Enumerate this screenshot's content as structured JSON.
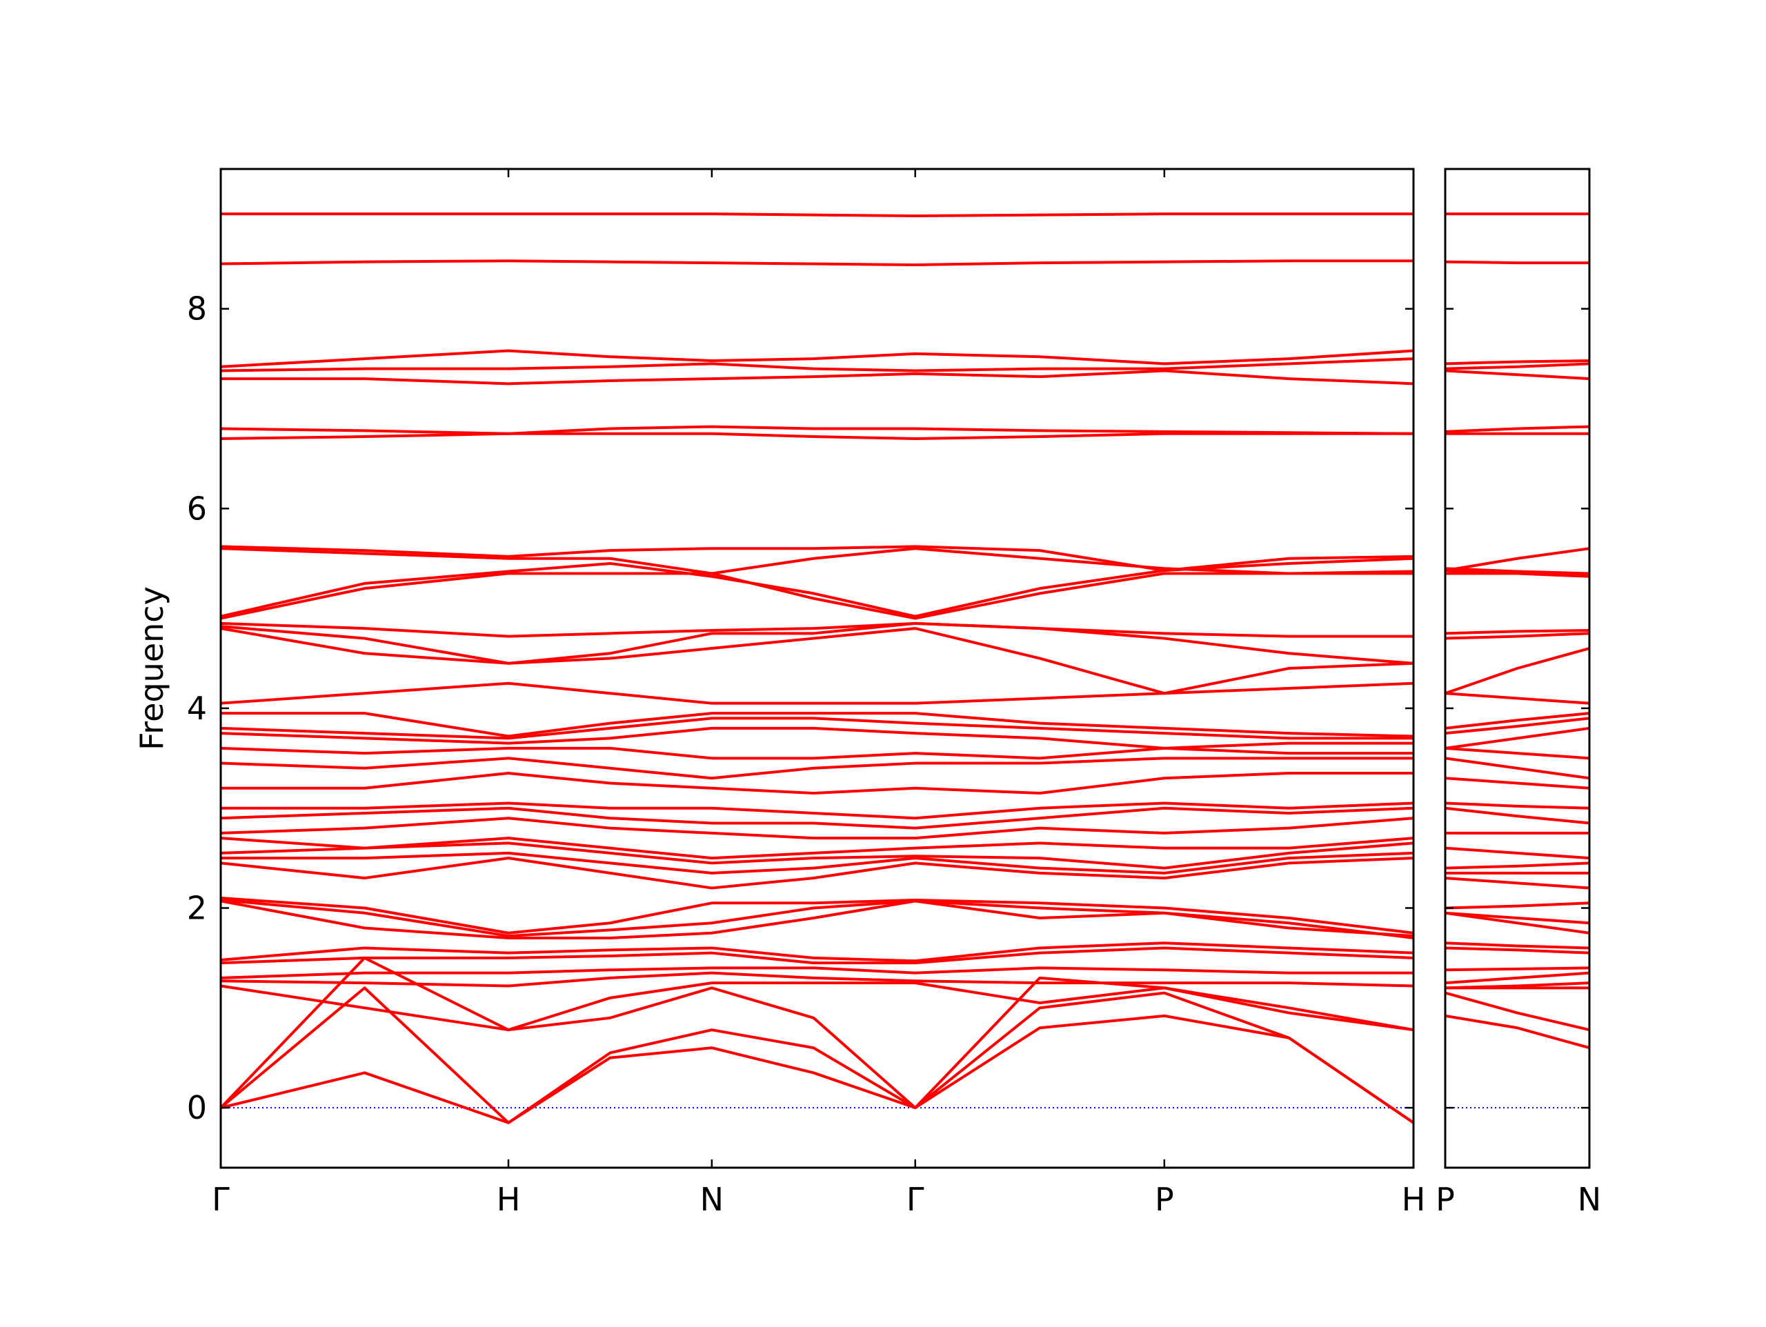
{
  "chart_data": [
    {
      "type": "line",
      "ylabel": "Frequency",
      "color": "#ff0000",
      "line_width": 4,
      "hline": 0,
      "hline_color": "#0000ff",
      "x": [
        0,
        0.5,
        1,
        1.3536,
        1.7071,
        2.0607,
        2.4142,
        2.8472,
        3.2802,
        3.7133,
        4.1463
      ],
      "xlim": [
        0,
        4.1463
      ],
      "xticks": [
        {
          "value": 0,
          "label": "Γ"
        },
        {
          "value": 1,
          "label": "H"
        },
        {
          "value": 1.7071,
          "label": "N"
        },
        {
          "value": 2.4142,
          "label": "Γ"
        },
        {
          "value": 3.2802,
          "label": "P"
        },
        {
          "value": 4.1463,
          "label": "H"
        }
      ],
      "ylim": [
        -0.6,
        9.4
      ],
      "yticks": [
        0,
        2,
        4,
        6,
        8
      ],
      "series": [
        {
          "values": [
            0,
            0.35,
            -0.15,
            0.5,
            0.6,
            0.35,
            0,
            0.8,
            0.92,
            0.7,
            -0.15
          ]
        },
        {
          "values": [
            0,
            1.2,
            -0.15,
            0.55,
            0.78,
            0.6,
            0,
            1.0,
            1.15,
            0.7,
            -0.15
          ]
        },
        {
          "values": [
            0,
            1.5,
            0.78,
            0.9,
            1.2,
            0.9,
            0,
            1.3,
            1.2,
            1.0,
            0.78
          ]
        },
        {
          "values": [
            1.22,
            1.0,
            0.78,
            1.1,
            1.25,
            1.25,
            1.25,
            1.05,
            1.2,
            0.95,
            0.78
          ]
        },
        {
          "values": [
            1.27,
            1.25,
            1.22,
            1.3,
            1.35,
            1.3,
            1.27,
            1.25,
            1.25,
            1.25,
            1.22
          ]
        },
        {
          "values": [
            1.3,
            1.35,
            1.35,
            1.38,
            1.4,
            1.4,
            1.35,
            1.4,
            1.38,
            1.35,
            1.35
          ]
        },
        {
          "values": [
            1.45,
            1.5,
            1.5,
            1.52,
            1.55,
            1.45,
            1.45,
            1.55,
            1.6,
            1.55,
            1.5
          ]
        },
        {
          "values": [
            1.48,
            1.6,
            1.55,
            1.58,
            1.6,
            1.5,
            1.47,
            1.6,
            1.65,
            1.6,
            1.55
          ]
        },
        {
          "values": [
            2.07,
            1.8,
            1.7,
            1.7,
            1.75,
            1.9,
            2.07,
            1.9,
            1.95,
            1.85,
            1.7
          ]
        },
        {
          "values": [
            2.08,
            1.95,
            1.72,
            1.78,
            1.85,
            2.0,
            2.07,
            2.0,
            1.95,
            1.8,
            1.72
          ]
        },
        {
          "values": [
            2.1,
            2.0,
            1.75,
            1.85,
            2.05,
            2.05,
            2.08,
            2.05,
            2.0,
            1.9,
            1.75
          ]
        },
        {
          "values": [
            2.45,
            2.3,
            2.5,
            2.35,
            2.2,
            2.3,
            2.45,
            2.35,
            2.3,
            2.45,
            2.5
          ]
        },
        {
          "values": [
            2.5,
            2.5,
            2.55,
            2.45,
            2.35,
            2.4,
            2.5,
            2.4,
            2.35,
            2.5,
            2.55
          ]
        },
        {
          "values": [
            2.55,
            2.6,
            2.65,
            2.55,
            2.45,
            2.5,
            2.52,
            2.5,
            2.4,
            2.55,
            2.65
          ]
        },
        {
          "values": [
            2.7,
            2.6,
            2.7,
            2.6,
            2.5,
            2.55,
            2.6,
            2.65,
            2.6,
            2.6,
            2.7
          ]
        },
        {
          "values": [
            2.75,
            2.8,
            2.9,
            2.8,
            2.75,
            2.7,
            2.7,
            2.8,
            2.75,
            2.8,
            2.9
          ]
        },
        {
          "values": [
            2.9,
            2.95,
            3.0,
            2.9,
            2.85,
            2.85,
            2.8,
            2.9,
            3.0,
            2.95,
            3.0
          ]
        },
        {
          "values": [
            3.0,
            3.0,
            3.05,
            3.0,
            3.0,
            2.95,
            2.9,
            3.0,
            3.05,
            3.0,
            3.05
          ]
        },
        {
          "values": [
            3.2,
            3.2,
            3.35,
            3.25,
            3.2,
            3.15,
            3.2,
            3.15,
            3.3,
            3.35,
            3.35
          ]
        },
        {
          "values": [
            3.45,
            3.4,
            3.5,
            3.4,
            3.3,
            3.4,
            3.45,
            3.45,
            3.5,
            3.5,
            3.5
          ]
        },
        {
          "values": [
            3.6,
            3.55,
            3.6,
            3.6,
            3.5,
            3.5,
            3.55,
            3.5,
            3.6,
            3.55,
            3.55
          ]
        },
        {
          "values": [
            3.75,
            3.7,
            3.65,
            3.7,
            3.8,
            3.8,
            3.75,
            3.7,
            3.6,
            3.65,
            3.65
          ]
        },
        {
          "values": [
            3.8,
            3.75,
            3.7,
            3.8,
            3.9,
            3.9,
            3.85,
            3.8,
            3.75,
            3.7,
            3.7
          ]
        },
        {
          "values": [
            3.95,
            3.95,
            3.72,
            3.85,
            3.95,
            3.95,
            3.95,
            3.85,
            3.8,
            3.75,
            3.72
          ]
        },
        {
          "values": [
            4.05,
            4.15,
            4.25,
            4.15,
            4.05,
            4.05,
            4.05,
            4.1,
            4.15,
            4.2,
            4.25
          ]
        },
        {
          "values": [
            4.8,
            4.55,
            4.45,
            4.5,
            4.6,
            4.7,
            4.8,
            4.5,
            4.15,
            4.4,
            4.45
          ]
        },
        {
          "values": [
            4.82,
            4.7,
            4.45,
            4.55,
            4.75,
            4.75,
            4.85,
            4.8,
            4.7,
            4.55,
            4.45
          ]
        },
        {
          "values": [
            4.85,
            4.8,
            4.72,
            4.75,
            4.78,
            4.8,
            4.85,
            4.8,
            4.75,
            4.72,
            4.72
          ]
        },
        {
          "values": [
            4.9,
            5.2,
            5.35,
            5.35,
            5.35,
            5.1,
            4.9,
            5.15,
            5.35,
            5.35,
            5.35
          ]
        },
        {
          "values": [
            4.92,
            5.25,
            5.37,
            5.45,
            5.32,
            5.15,
            4.92,
            5.2,
            5.38,
            5.45,
            5.5
          ]
        },
        {
          "values": [
            5.6,
            5.55,
            5.5,
            5.5,
            5.35,
            5.5,
            5.6,
            5.5,
            5.4,
            5.35,
            5.37
          ]
        },
        {
          "values": [
            5.62,
            5.58,
            5.52,
            5.58,
            5.6,
            5.6,
            5.62,
            5.58,
            5.38,
            5.5,
            5.52
          ]
        },
        {
          "values": [
            6.7,
            6.72,
            6.75,
            6.75,
            6.75,
            6.72,
            6.7,
            6.72,
            6.75,
            6.75,
            6.75
          ]
        },
        {
          "values": [
            6.8,
            6.78,
            6.75,
            6.8,
            6.82,
            6.8,
            6.8,
            6.78,
            6.77,
            6.76,
            6.75
          ]
        },
        {
          "values": [
            7.3,
            7.3,
            7.25,
            7.28,
            7.3,
            7.32,
            7.35,
            7.32,
            7.38,
            7.3,
            7.25
          ]
        },
        {
          "values": [
            7.38,
            7.4,
            7.4,
            7.42,
            7.45,
            7.4,
            7.38,
            7.4,
            7.4,
            7.45,
            7.5
          ]
        },
        {
          "values": [
            7.42,
            7.5,
            7.58,
            7.52,
            7.48,
            7.5,
            7.55,
            7.52,
            7.45,
            7.5,
            7.58
          ]
        },
        {
          "values": [
            8.45,
            8.47,
            8.48,
            8.47,
            8.46,
            8.45,
            8.44,
            8.46,
            8.47,
            8.48,
            8.48
          ]
        },
        {
          "values": [
            8.95,
            8.95,
            8.95,
            8.95,
            8.95,
            8.94,
            8.93,
            8.94,
            8.95,
            8.95,
            8.95
          ]
        }
      ]
    },
    {
      "type": "line",
      "color": "#ff0000",
      "line_width": 4,
      "hline": 0,
      "hline_color": "#0000ff",
      "x": [
        0,
        0.25,
        0.5
      ],
      "xlim": [
        0,
        0.5
      ],
      "xticks": [
        {
          "value": 0,
          "label": "P"
        },
        {
          "value": 0.5,
          "label": "N"
        }
      ],
      "ylim": [
        -0.6,
        9.4
      ],
      "yticks": [
        0,
        2,
        4,
        6,
        8
      ],
      "series": [
        {
          "values": [
            0.92,
            0.8,
            0.6
          ]
        },
        {
          "values": [
            1.15,
            0.95,
            0.78
          ]
        },
        {
          "values": [
            1.2,
            1.2,
            1.2
          ]
        },
        {
          "values": [
            1.2,
            1.22,
            1.25
          ]
        },
        {
          "values": [
            1.25,
            1.3,
            1.35
          ]
        },
        {
          "values": [
            1.38,
            1.39,
            1.4
          ]
        },
        {
          "values": [
            1.6,
            1.58,
            1.55
          ]
        },
        {
          "values": [
            1.65,
            1.62,
            1.6
          ]
        },
        {
          "values": [
            1.95,
            1.85,
            1.75
          ]
        },
        {
          "values": [
            1.95,
            1.9,
            1.85
          ]
        },
        {
          "values": [
            2.0,
            2.02,
            2.05
          ]
        },
        {
          "values": [
            2.3,
            2.25,
            2.2
          ]
        },
        {
          "values": [
            2.35,
            2.35,
            2.35
          ]
        },
        {
          "values": [
            2.4,
            2.42,
            2.45
          ]
        },
        {
          "values": [
            2.6,
            2.55,
            2.5
          ]
        },
        {
          "values": [
            2.75,
            2.75,
            2.75
          ]
        },
        {
          "values": [
            3.0,
            2.92,
            2.85
          ]
        },
        {
          "values": [
            3.05,
            3.02,
            3.0
          ]
        },
        {
          "values": [
            3.3,
            3.25,
            3.2
          ]
        },
        {
          "values": [
            3.5,
            3.4,
            3.3
          ]
        },
        {
          "values": [
            3.6,
            3.55,
            3.5
          ]
        },
        {
          "values": [
            3.6,
            3.7,
            3.8
          ]
        },
        {
          "values": [
            3.75,
            3.82,
            3.9
          ]
        },
        {
          "values": [
            3.8,
            3.88,
            3.95
          ]
        },
        {
          "values": [
            4.15,
            4.1,
            4.05
          ]
        },
        {
          "values": [
            4.15,
            4.4,
            4.6
          ]
        },
        {
          "values": [
            4.7,
            4.72,
            4.75
          ]
        },
        {
          "values": [
            4.75,
            4.77,
            4.78
          ]
        },
        {
          "values": [
            5.35,
            5.35,
            5.35
          ]
        },
        {
          "values": [
            5.38,
            5.35,
            5.32
          ]
        },
        {
          "values": [
            5.4,
            5.37,
            5.35
          ]
        },
        {
          "values": [
            5.38,
            5.5,
            5.6
          ]
        },
        {
          "values": [
            6.75,
            6.75,
            6.75
          ]
        },
        {
          "values": [
            6.77,
            6.8,
            6.82
          ]
        },
        {
          "values": [
            7.38,
            7.34,
            7.3
          ]
        },
        {
          "values": [
            7.4,
            7.42,
            7.45
          ]
        },
        {
          "values": [
            7.45,
            7.47,
            7.48
          ]
        },
        {
          "values": [
            8.47,
            8.46,
            8.46
          ]
        },
        {
          "values": [
            8.95,
            8.95,
            8.95
          ]
        }
      ]
    }
  ]
}
